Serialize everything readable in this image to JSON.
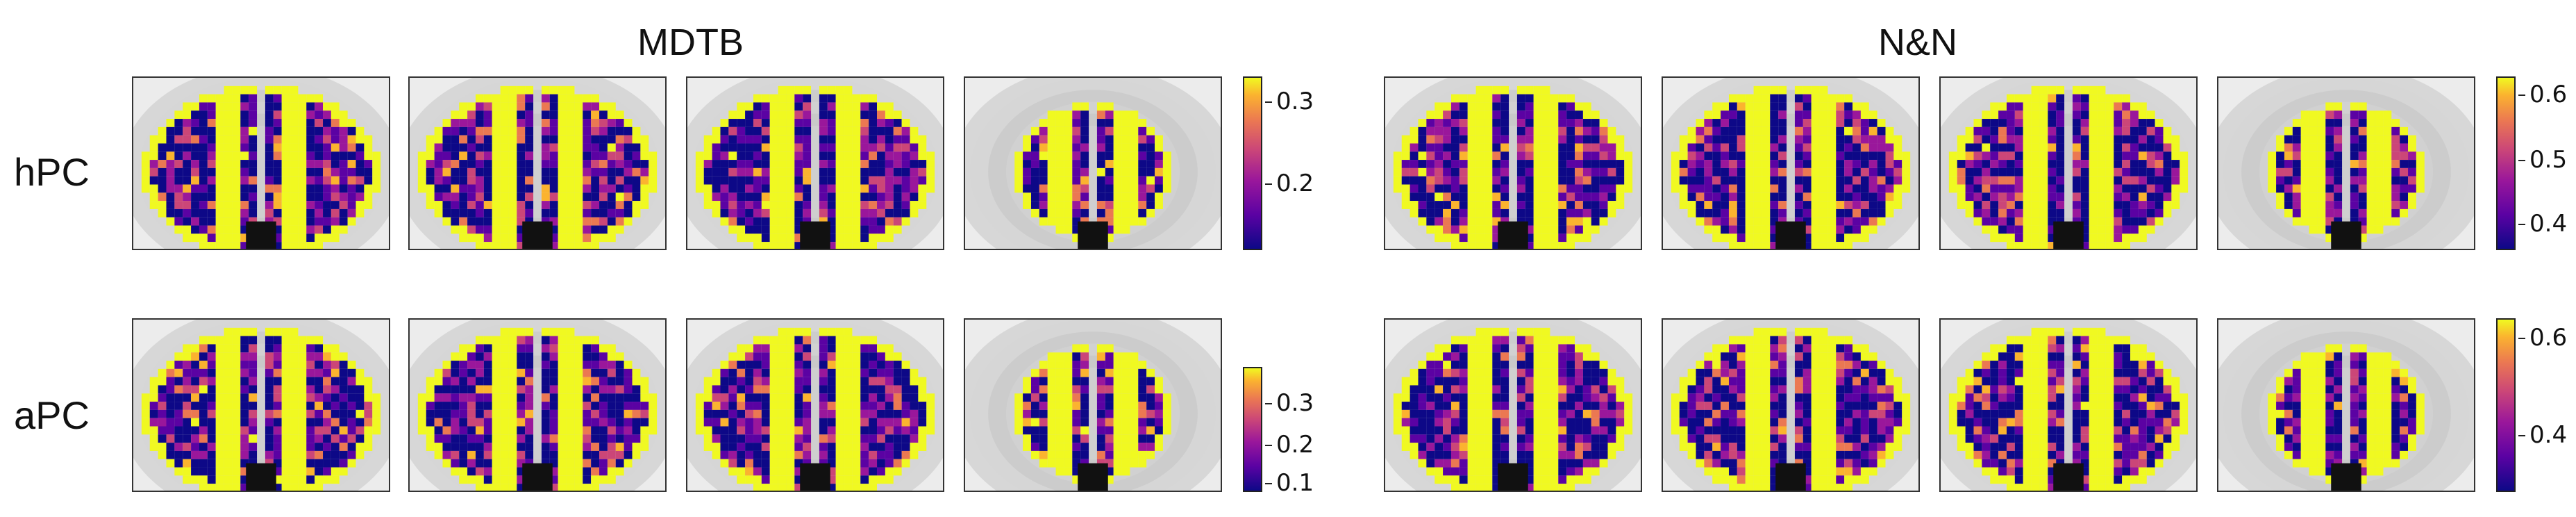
{
  "titles": {
    "left": "MDTB",
    "right": "N&N"
  },
  "rows": {
    "top": "hPC",
    "bottom": "aPC"
  },
  "colorbars": {
    "mdtb_hpc": [
      "0.3",
      "0.2"
    ],
    "nn_hpc": [
      "0.6",
      "0.5",
      "0.4"
    ],
    "mdtb_apc": [
      "0.3",
      "0.2",
      "0.1"
    ],
    "nn_apc": [
      "0.6",
      "0.4"
    ]
  },
  "colormap": [
    "#0d0887",
    "#5b02a3",
    "#9a179b",
    "#cb4678",
    "#eb7852",
    "#fbb32f",
    "#f0f921"
  ]
}
